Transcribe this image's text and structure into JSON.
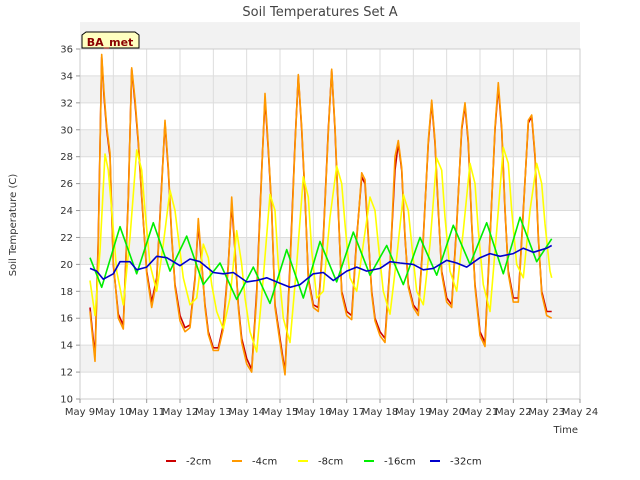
{
  "chart_data": {
    "type": "line",
    "title": "Soil Temperatures Set A",
    "xlabel": "Time",
    "ylabel": "Soil Temperature (C)",
    "station_label": "BA_met",
    "x_range": [
      "2024-05-09",
      "2024-05-24"
    ],
    "x_ticks": [
      "May 9",
      "May 10",
      "May 11",
      "May 12",
      "May 13",
      "May 14",
      "May 15",
      "May 16",
      "May 17",
      "May 18",
      "May 19",
      "May 20",
      "May 21",
      "May 22",
      "May 23",
      "May 24"
    ],
    "ylim": [
      10,
      36
    ],
    "y_ticks": [
      10,
      12,
      14,
      16,
      18,
      20,
      22,
      24,
      26,
      28,
      30,
      32,
      34,
      36
    ],
    "grid": true,
    "background_bands": true,
    "legend_position": "bottom",
    "series": [
      {
        "name": "-2cm",
        "color": "#cc0000",
        "x_days": [
          9.3,
          9.45,
          9.55,
          9.65,
          9.72,
          9.8,
          9.9,
          10.0,
          10.15,
          10.3,
          10.45,
          10.55,
          10.65,
          10.75,
          10.85,
          11.0,
          11.15,
          11.3,
          11.45,
          11.55,
          11.65,
          11.75,
          11.85,
          12.0,
          12.15,
          12.3,
          12.45,
          12.55,
          12.65,
          12.75,
          12.85,
          13.0,
          13.15,
          13.3,
          13.45,
          13.55,
          13.65,
          13.75,
          13.85,
          14.0,
          14.15,
          14.3,
          14.45,
          14.55,
          14.65,
          14.75,
          14.85,
          15.0,
          15.15,
          15.3,
          15.45,
          15.55,
          15.65,
          15.75,
          15.85,
          16.0,
          16.15,
          16.3,
          16.45,
          16.55,
          16.65,
          16.75,
          16.85,
          17.0,
          17.15,
          17.3,
          17.45,
          17.55,
          17.65,
          17.75,
          17.85,
          18.0,
          18.15,
          18.3,
          18.45,
          18.55,
          18.65,
          18.75,
          18.85,
          19.0,
          19.15,
          19.3,
          19.45,
          19.55,
          19.65,
          19.75,
          19.85,
          20.0,
          20.15,
          20.3,
          20.45,
          20.55,
          20.65,
          20.75,
          20.85,
          21.0,
          21.15,
          21.3,
          21.45,
          21.55,
          21.65,
          21.75,
          21.85,
          22.0,
          22.15,
          22.3,
          22.45,
          22.55,
          22.65,
          22.75,
          22.85,
          23.0,
          23.15
        ],
        "values": [
          16.8,
          13.2,
          22.0,
          35.4,
          32.5,
          30.0,
          28.0,
          20.0,
          16.3,
          15.5,
          25.0,
          34.5,
          32.0,
          29.0,
          25.0,
          19.5,
          17.2,
          19.0,
          26.0,
          30.5,
          27.0,
          22.0,
          18.5,
          16.2,
          15.3,
          15.5,
          19.0,
          23.0,
          20.0,
          17.0,
          15.0,
          13.8,
          13.8,
          15.5,
          20.0,
          24.5,
          21.0,
          17.0,
          14.5,
          13.0,
          12.2,
          18.0,
          27.0,
          32.3,
          28.5,
          24.0,
          17.0,
          14.5,
          12.0,
          20.0,
          29.0,
          34.0,
          30.0,
          25.0,
          19.0,
          17.0,
          16.8,
          22.0,
          30.0,
          34.4,
          30.0,
          24.0,
          18.0,
          16.5,
          16.2,
          22.0,
          26.5,
          26.0,
          22.0,
          18.0,
          16.0,
          15.0,
          14.5,
          20.0,
          27.0,
          29.0,
          27.0,
          22.0,
          18.5,
          17.0,
          16.5,
          22.0,
          29.0,
          32.0,
          29.0,
          24.0,
          19.5,
          17.5,
          17.0,
          23.0,
          30.0,
          31.8,
          29.0,
          23.0,
          18.5,
          15.0,
          14.2,
          22.0,
          30.0,
          33.2,
          30.0,
          24.0,
          19.5,
          17.5,
          17.5,
          24.0,
          30.5,
          31.0,
          28.0,
          22.0,
          18.0,
          16.5,
          16.5
        ]
      },
      {
        "name": "-4cm",
        "color": "#ff9900",
        "x_days": [
          9.3,
          9.45,
          9.55,
          9.65,
          9.72,
          9.8,
          9.9,
          10.0,
          10.15,
          10.3,
          10.45,
          10.55,
          10.65,
          10.75,
          10.85,
          11.0,
          11.15,
          11.3,
          11.45,
          11.55,
          11.65,
          11.75,
          11.85,
          12.0,
          12.15,
          12.3,
          12.45,
          12.55,
          12.65,
          12.75,
          12.85,
          13.0,
          13.15,
          13.3,
          13.45,
          13.55,
          13.65,
          13.75,
          13.85,
          14.0,
          14.15,
          14.3,
          14.45,
          14.55,
          14.65,
          14.75,
          14.85,
          15.0,
          15.15,
          15.3,
          15.45,
          15.55,
          15.65,
          15.75,
          15.85,
          16.0,
          16.15,
          16.3,
          16.45,
          16.55,
          16.65,
          16.75,
          16.85,
          17.0,
          17.15,
          17.3,
          17.45,
          17.55,
          17.65,
          17.75,
          17.85,
          18.0,
          18.15,
          18.3,
          18.45,
          18.55,
          18.65,
          18.75,
          18.85,
          19.0,
          19.15,
          19.3,
          19.45,
          19.55,
          19.65,
          19.75,
          19.85,
          20.0,
          20.15,
          20.3,
          20.45,
          20.55,
          20.65,
          20.75,
          20.85,
          21.0,
          21.15,
          21.3,
          21.45,
          21.55,
          21.65,
          21.75,
          21.85,
          22.0,
          22.15,
          22.3,
          22.45,
          22.55,
          22.65,
          22.75,
          22.85,
          23.0,
          23.15
        ],
        "values": [
          16.5,
          12.8,
          21.5,
          35.6,
          32.8,
          30.2,
          28.3,
          20.2,
          16.0,
          15.2,
          24.8,
          34.6,
          32.3,
          29.2,
          25.2,
          19.3,
          16.8,
          18.8,
          25.8,
          30.7,
          27.2,
          22.2,
          18.3,
          15.8,
          15.0,
          15.3,
          18.8,
          23.4,
          20.2,
          16.8,
          14.8,
          13.6,
          13.6,
          15.2,
          19.8,
          25.0,
          21.2,
          16.8,
          14.2,
          12.6,
          12.0,
          17.6,
          26.8,
          32.7,
          28.7,
          24.2,
          16.8,
          14.2,
          11.8,
          19.6,
          28.8,
          34.1,
          30.2,
          25.2,
          18.8,
          16.8,
          16.5,
          21.8,
          29.8,
          34.5,
          30.2,
          24.2,
          17.8,
          16.2,
          15.9,
          21.8,
          26.8,
          26.3,
          22.2,
          17.8,
          15.8,
          14.7,
          14.2,
          19.8,
          28.0,
          29.2,
          27.2,
          22.2,
          18.3,
          16.8,
          16.2,
          21.8,
          29.2,
          32.2,
          29.2,
          24.2,
          19.3,
          17.2,
          16.8,
          22.8,
          30.2,
          32.0,
          29.2,
          23.2,
          18.3,
          14.7,
          13.9,
          21.8,
          30.2,
          33.5,
          30.2,
          24.2,
          19.3,
          17.2,
          17.2,
          23.8,
          30.7,
          31.1,
          28.2,
          22.2,
          17.8,
          16.2,
          16.0
        ]
      },
      {
        "name": "-8cm",
        "color": "#ffff00",
        "x_days": [
          9.3,
          9.45,
          9.6,
          9.75,
          9.85,
          9.95,
          10.1,
          10.3,
          10.5,
          10.7,
          10.85,
          10.95,
          11.1,
          11.3,
          11.5,
          11.7,
          11.85,
          11.95,
          12.1,
          12.3,
          12.5,
          12.7,
          12.85,
          12.95,
          13.1,
          13.3,
          13.5,
          13.7,
          13.85,
          13.95,
          14.1,
          14.3,
          14.5,
          14.7,
          14.85,
          14.95,
          15.1,
          15.3,
          15.5,
          15.7,
          15.85,
          15.95,
          16.1,
          16.3,
          16.5,
          16.7,
          16.85,
          16.95,
          17.1,
          17.3,
          17.5,
          17.7,
          17.85,
          17.95,
          18.1,
          18.3,
          18.5,
          18.7,
          18.85,
          18.95,
          19.1,
          19.3,
          19.5,
          19.7,
          19.85,
          19.95,
          20.1,
          20.3,
          20.5,
          20.7,
          20.85,
          20.95,
          21.1,
          21.3,
          21.5,
          21.7,
          21.85,
          21.95,
          22.1,
          22.3,
          22.5,
          22.7,
          22.85,
          22.95,
          23.1,
          23.15
        ],
        "values": [
          18.8,
          16.2,
          21.0,
          28.2,
          27.0,
          24.0,
          19.5,
          17.0,
          22.0,
          28.5,
          27.0,
          24.0,
          20.0,
          18.0,
          21.5,
          25.5,
          24.0,
          22.0,
          19.0,
          17.0,
          17.5,
          21.5,
          20.5,
          18.5,
          16.5,
          15.2,
          17.5,
          22.5,
          20.0,
          17.5,
          15.0,
          13.5,
          19.0,
          25.2,
          24.0,
          20.0,
          16.0,
          14.2,
          20.0,
          26.5,
          25.0,
          21.0,
          17.5,
          18.0,
          23.5,
          27.3,
          26.0,
          23.0,
          19.0,
          18.0,
          21.5,
          25.0,
          24.0,
          21.5,
          18.0,
          16.3,
          20.5,
          25.2,
          24.0,
          21.5,
          18.0,
          17.0,
          21.5,
          27.9,
          27.0,
          23.5,
          19.5,
          18.0,
          22.5,
          27.5,
          26.0,
          22.5,
          18.5,
          16.5,
          22.5,
          28.7,
          27.5,
          24.0,
          20.0,
          19.0,
          24.0,
          27.5,
          26.0,
          23.0,
          19.5,
          19.0
        ]
      },
      {
        "name": "-16cm",
        "color": "#00ee00",
        "x_days": [
          9.3,
          9.65,
          10.2,
          10.7,
          11.2,
          11.7,
          12.2,
          12.7,
          13.2,
          13.7,
          14.2,
          14.7,
          15.2,
          15.7,
          16.2,
          16.7,
          17.2,
          17.7,
          18.2,
          18.7,
          19.2,
          19.7,
          20.2,
          20.7,
          21.2,
          21.7,
          22.2,
          22.7,
          23.15
        ],
        "values": [
          20.5,
          18.3,
          22.8,
          19.3,
          23.1,
          19.5,
          22.1,
          18.5,
          20.1,
          17.4,
          19.8,
          17.1,
          21.1,
          17.5,
          21.7,
          18.7,
          22.4,
          19.2,
          21.4,
          18.5,
          22.0,
          19.2,
          22.9,
          20.0,
          23.1,
          19.3,
          23.5,
          20.2,
          21.9
        ]
      },
      {
        "name": "-32cm",
        "color": "#0000cc",
        "x_days": [
          9.3,
          9.5,
          9.7,
          10.0,
          10.2,
          10.5,
          10.7,
          11.0,
          11.3,
          11.6,
          12.0,
          12.3,
          12.6,
          13.0,
          13.3,
          13.6,
          14.0,
          14.3,
          14.6,
          15.0,
          15.3,
          15.6,
          16.0,
          16.3,
          16.6,
          17.0,
          17.3,
          17.6,
          18.0,
          18.3,
          18.6,
          19.0,
          19.3,
          19.6,
          20.0,
          20.3,
          20.6,
          21.0,
          21.3,
          21.6,
          22.0,
          22.3,
          22.6,
          23.0,
          23.15
        ],
        "values": [
          19.7,
          19.5,
          18.9,
          19.3,
          20.2,
          20.2,
          19.6,
          19.8,
          20.6,
          20.5,
          19.9,
          20.4,
          20.2,
          19.4,
          19.3,
          19.4,
          18.7,
          18.8,
          19.0,
          18.6,
          18.3,
          18.5,
          19.3,
          19.4,
          18.8,
          19.5,
          19.8,
          19.5,
          19.7,
          20.2,
          20.1,
          20.0,
          19.6,
          19.7,
          20.3,
          20.1,
          19.8,
          20.5,
          20.8,
          20.6,
          20.8,
          21.2,
          20.9,
          21.2,
          21.4
        ]
      }
    ]
  }
}
